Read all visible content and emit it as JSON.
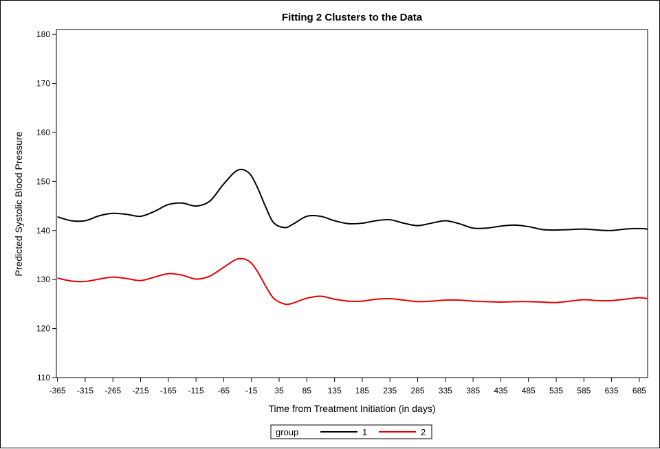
{
  "chart_data": {
    "type": "line",
    "title": "Fitting 2 Clusters to the Data",
    "xlabel": "Time from Treatment Initiation (in days)",
    "ylabel": "Predicted Systolic Blood Pressure",
    "xlim": [
      -367,
      700
    ],
    "ylim": [
      110,
      181
    ],
    "xticks": [
      -365,
      -315,
      -265,
      -215,
      -165,
      -115,
      -65,
      -15,
      35,
      85,
      135,
      185,
      235,
      285,
      335,
      385,
      435,
      485,
      535,
      585,
      635,
      685
    ],
    "yticks": [
      110,
      120,
      130,
      140,
      150,
      160,
      170,
      180
    ],
    "grid": false,
    "legend": {
      "title": "group",
      "placement": "bottom-center"
    },
    "series": [
      {
        "name": "1",
        "color": "#000000",
        "x": [
          -365,
          -340,
          -315,
          -290,
          -265,
          -240,
          -215,
          -190,
          -165,
          -140,
          -115,
          -90,
          -65,
          -40,
          -20,
          -5,
          10,
          25,
          45,
          60,
          85,
          110,
          135,
          160,
          185,
          210,
          235,
          260,
          285,
          310,
          335,
          360,
          385,
          410,
          435,
          460,
          485,
          510,
          535,
          560,
          585,
          610,
          635,
          660,
          685,
          700
        ],
        "values": [
          142.8,
          142.0,
          142.0,
          143.0,
          143.5,
          143.3,
          142.9,
          143.9,
          145.3,
          145.6,
          145.0,
          146.0,
          149.5,
          152.3,
          151.8,
          149.0,
          145.0,
          141.6,
          140.6,
          141.3,
          142.9,
          142.9,
          142.0,
          141.4,
          141.5,
          142.0,
          142.2,
          141.5,
          141.0,
          141.5,
          142.0,
          141.4,
          140.5,
          140.5,
          140.9,
          141.1,
          140.8,
          140.2,
          140.1,
          140.2,
          140.3,
          140.1,
          140.0,
          140.3,
          140.4,
          140.3
        ]
      },
      {
        "name": "2",
        "color": "#e00000",
        "x": [
          -365,
          -340,
          -315,
          -290,
          -265,
          -240,
          -215,
          -190,
          -165,
          -140,
          -115,
          -90,
          -65,
          -40,
          -20,
          -5,
          10,
          25,
          45,
          60,
          85,
          110,
          135,
          160,
          185,
          210,
          235,
          260,
          285,
          310,
          335,
          360,
          385,
          410,
          435,
          460,
          485,
          510,
          535,
          560,
          585,
          610,
          635,
          660,
          685,
          700
        ],
        "values": [
          130.3,
          129.7,
          129.6,
          130.1,
          130.5,
          130.2,
          129.8,
          130.5,
          131.2,
          130.9,
          130.1,
          130.7,
          132.5,
          134.2,
          133.8,
          131.8,
          128.8,
          126.2,
          125.0,
          125.2,
          126.2,
          126.6,
          126.0,
          125.6,
          125.6,
          126.0,
          126.1,
          125.8,
          125.5,
          125.6,
          125.8,
          125.8,
          125.6,
          125.5,
          125.4,
          125.5,
          125.5,
          125.4,
          125.3,
          125.6,
          125.9,
          125.7,
          125.7,
          126.0,
          126.3,
          126.1
        ]
      }
    ]
  }
}
